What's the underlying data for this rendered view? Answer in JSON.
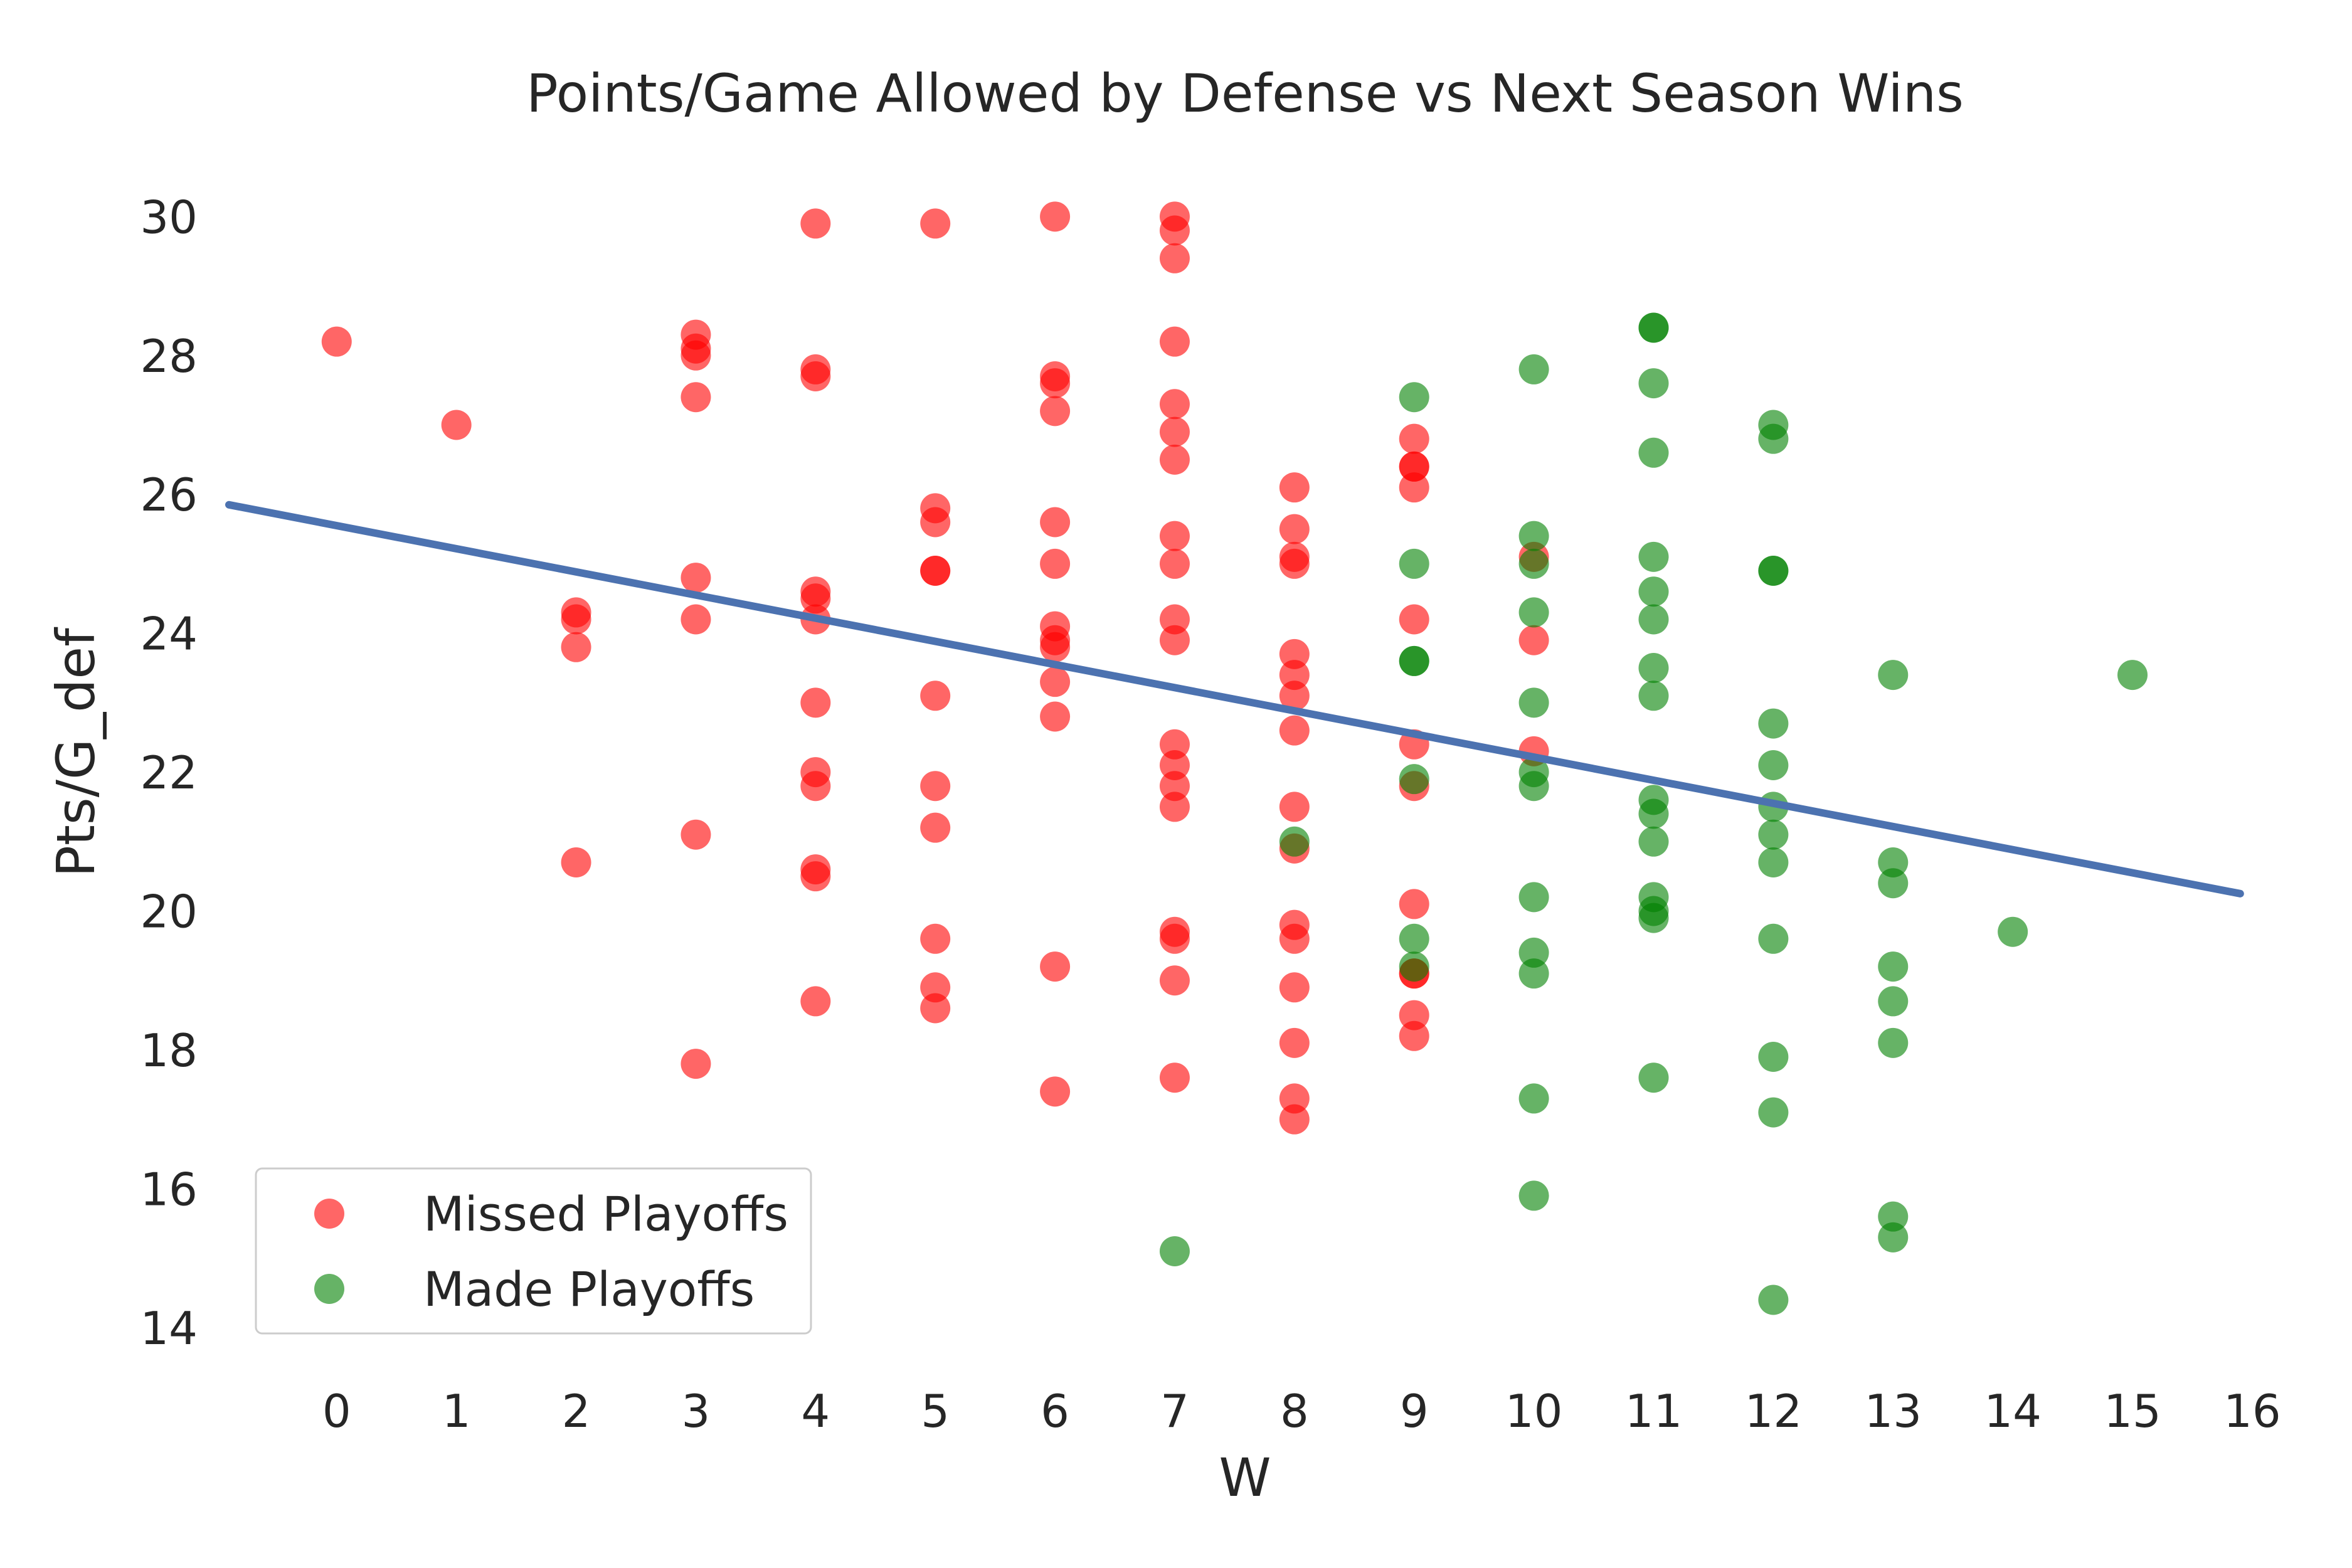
{
  "chart_data": {
    "type": "scatter",
    "title": "Points/Game Allowed by Defense vs Next Season Wins",
    "xlabel": "W",
    "ylabel": "Pts/G_def",
    "xlim": [
      -0.9,
      16.1
    ],
    "ylim": [
      13.7,
      30.5
    ],
    "xticks": [
      0,
      1,
      2,
      3,
      4,
      5,
      6,
      7,
      8,
      9,
      10,
      11,
      12,
      13,
      14,
      15,
      16
    ],
    "yticks": [
      14,
      16,
      18,
      20,
      22,
      24,
      26,
      28,
      30
    ],
    "grid": false,
    "legend_position": "lower-left",
    "series": [
      {
        "name": "Missed Playoffs",
        "color": "#ff0000",
        "points": [
          [
            0,
            28.2
          ],
          [
            1,
            27.0
          ],
          [
            2,
            24.3
          ],
          [
            2,
            24.2
          ],
          [
            2,
            23.8
          ],
          [
            2,
            20.7
          ],
          [
            3,
            28.3
          ],
          [
            3,
            28.1
          ],
          [
            3,
            28.0
          ],
          [
            3,
            27.4
          ],
          [
            3,
            24.8
          ],
          [
            3,
            24.2
          ],
          [
            3,
            21.1
          ],
          [
            3,
            17.8
          ],
          [
            4,
            29.9
          ],
          [
            4,
            27.8
          ],
          [
            4,
            27.7
          ],
          [
            4,
            24.6
          ],
          [
            4,
            24.5
          ],
          [
            4,
            24.2
          ],
          [
            4,
            23.0
          ],
          [
            4,
            22.0
          ],
          [
            4,
            21.8
          ],
          [
            4,
            20.6
          ],
          [
            4,
            20.5
          ],
          [
            4,
            18.7
          ],
          [
            5,
            29.9
          ],
          [
            5,
            25.8
          ],
          [
            5,
            25.6
          ],
          [
            5,
            24.9
          ],
          [
            5,
            24.9
          ],
          [
            5,
            23.1
          ],
          [
            5,
            21.8
          ],
          [
            5,
            21.2
          ],
          [
            5,
            19.6
          ],
          [
            5,
            18.9
          ],
          [
            5,
            18.6
          ],
          [
            6,
            30.0
          ],
          [
            6,
            27.7
          ],
          [
            6,
            27.6
          ],
          [
            6,
            27.2
          ],
          [
            6,
            25.6
          ],
          [
            6,
            25.0
          ],
          [
            6,
            24.1
          ],
          [
            6,
            23.9
          ],
          [
            6,
            23.8
          ],
          [
            6,
            23.3
          ],
          [
            6,
            22.8
          ],
          [
            6,
            19.2
          ],
          [
            6,
            17.4
          ],
          [
            7,
            30.0
          ],
          [
            7,
            29.8
          ],
          [
            7,
            29.4
          ],
          [
            7,
            28.2
          ],
          [
            7,
            27.3
          ],
          [
            7,
            26.9
          ],
          [
            7,
            26.5
          ],
          [
            7,
            25.4
          ],
          [
            7,
            25.0
          ],
          [
            7,
            24.2
          ],
          [
            7,
            23.9
          ],
          [
            7,
            22.4
          ],
          [
            7,
            22.1
          ],
          [
            7,
            21.8
          ],
          [
            7,
            21.5
          ],
          [
            7,
            19.7
          ],
          [
            7,
            19.6
          ],
          [
            7,
            19.0
          ],
          [
            7,
            17.6
          ],
          [
            8,
            26.1
          ],
          [
            8,
            25.5
          ],
          [
            8,
            25.1
          ],
          [
            8,
            25.0
          ],
          [
            8,
            23.7
          ],
          [
            8,
            23.4
          ],
          [
            8,
            23.1
          ],
          [
            8,
            22.6
          ],
          [
            8,
            21.5
          ],
          [
            8,
            20.9
          ],
          [
            8,
            19.8
          ],
          [
            8,
            19.6
          ],
          [
            8,
            18.9
          ],
          [
            8,
            18.1
          ],
          [
            8,
            17.3
          ],
          [
            8,
            17.0
          ],
          [
            9,
            26.8
          ],
          [
            9,
            26.4
          ],
          [
            9,
            26.4
          ],
          [
            9,
            26.1
          ],
          [
            9,
            24.2
          ],
          [
            9,
            22.4
          ],
          [
            9,
            21.8
          ],
          [
            9,
            20.1
          ],
          [
            9,
            19.1
          ],
          [
            9,
            19.1
          ],
          [
            9,
            18.5
          ],
          [
            9,
            18.2
          ],
          [
            10,
            25.1
          ],
          [
            10,
            23.9
          ],
          [
            10,
            22.3
          ]
        ]
      },
      {
        "name": "Made Playoffs",
        "color": "#008000",
        "points": [
          [
            7,
            15.1
          ],
          [
            8,
            21.0
          ],
          [
            9,
            27.4
          ],
          [
            9,
            25.0
          ],
          [
            9,
            23.6
          ],
          [
            9,
            23.6
          ],
          [
            9,
            21.9
          ],
          [
            9,
            19.6
          ],
          [
            9,
            19.2
          ],
          [
            10,
            27.8
          ],
          [
            10,
            25.4
          ],
          [
            10,
            25.0
          ],
          [
            10,
            24.3
          ],
          [
            10,
            23.0
          ],
          [
            10,
            22.0
          ],
          [
            10,
            21.8
          ],
          [
            10,
            20.2
          ],
          [
            10,
            19.4
          ],
          [
            10,
            19.1
          ],
          [
            10,
            17.3
          ],
          [
            10,
            15.9
          ],
          [
            11,
            28.4
          ],
          [
            11,
            28.4
          ],
          [
            11,
            27.6
          ],
          [
            11,
            26.6
          ],
          [
            11,
            25.1
          ],
          [
            11,
            24.6
          ],
          [
            11,
            24.2
          ],
          [
            11,
            23.5
          ],
          [
            11,
            23.1
          ],
          [
            11,
            21.6
          ],
          [
            11,
            21.4
          ],
          [
            11,
            21.0
          ],
          [
            11,
            20.2
          ],
          [
            11,
            20.0
          ],
          [
            11,
            19.9
          ],
          [
            11,
            17.6
          ],
          [
            12,
            27.0
          ],
          [
            12,
            26.8
          ],
          [
            12,
            24.9
          ],
          [
            12,
            24.9
          ],
          [
            12,
            22.7
          ],
          [
            12,
            22.1
          ],
          [
            12,
            21.5
          ],
          [
            12,
            21.1
          ],
          [
            12,
            20.7
          ],
          [
            12,
            19.6
          ],
          [
            12,
            17.9
          ],
          [
            12,
            17.1
          ],
          [
            12,
            14.4
          ],
          [
            13,
            23.4
          ],
          [
            13,
            20.7
          ],
          [
            13,
            20.4
          ],
          [
            13,
            19.2
          ],
          [
            13,
            18.7
          ],
          [
            13,
            18.1
          ],
          [
            13,
            15.6
          ],
          [
            13,
            15.3
          ],
          [
            14,
            19.7
          ],
          [
            15,
            23.4
          ]
        ]
      }
    ],
    "regression_line": {
      "color": "#4c72b0",
      "x": [
        -0.9,
        15.9
      ],
      "y": [
        25.85,
        20.25
      ]
    }
  }
}
